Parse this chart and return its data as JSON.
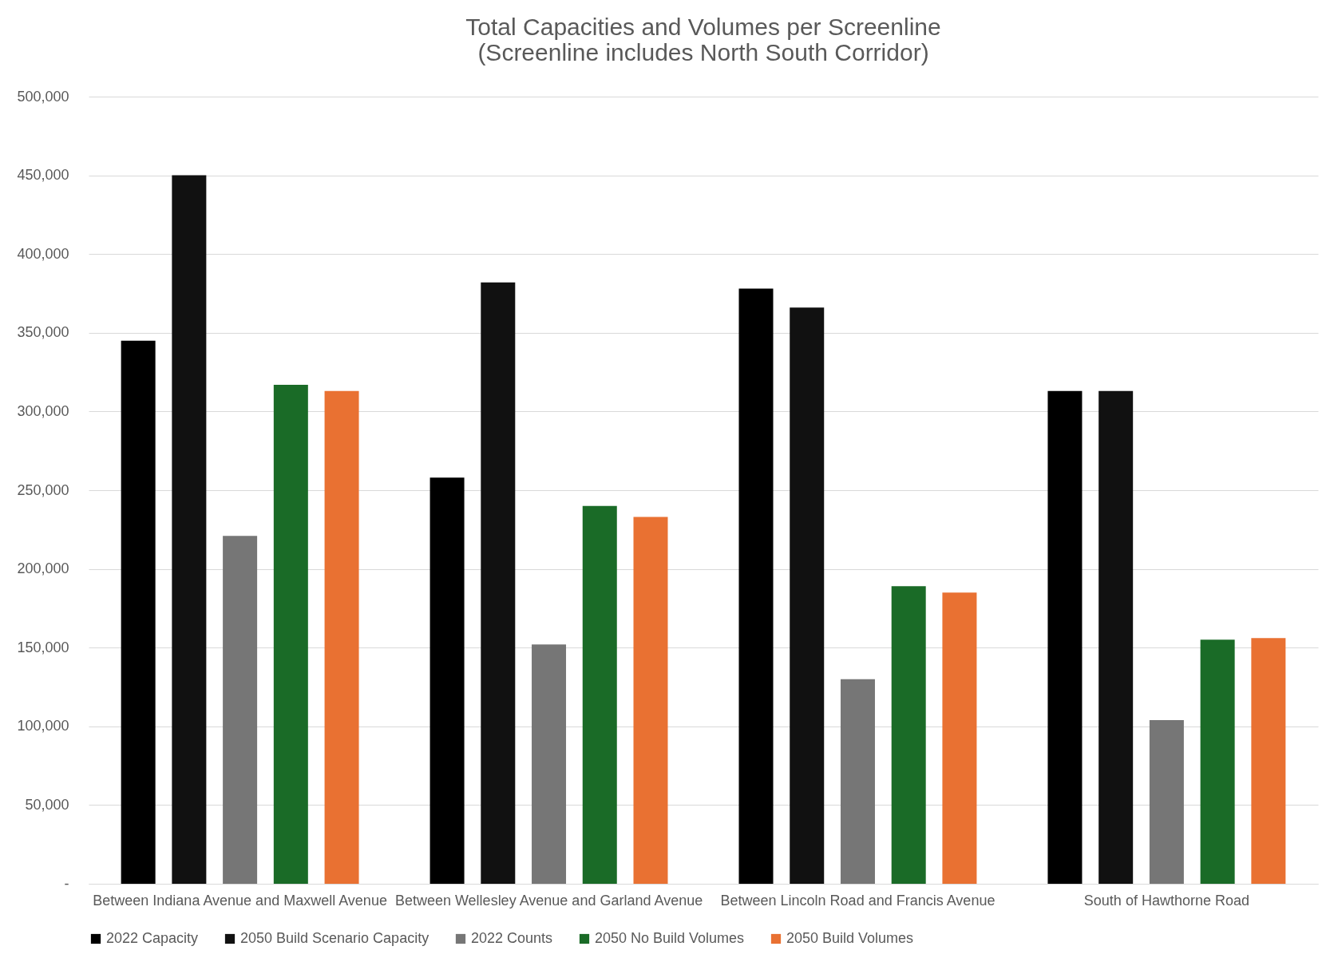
{
  "chart_data": {
    "type": "bar",
    "title": "Total Capacities and Volumes per Screenline\n(Screenline includes North South Corridor)",
    "categories": [
      "Between Indiana Avenue and Maxwell Avenue",
      "Between Wellesley Avenue and Garland Avenue",
      "Between Lincoln Road and Francis Avenue",
      "South of Hawthorne Road"
    ],
    "series": [
      {
        "name": "2022 Capacity",
        "color": "#000000",
        "values": [
          345000,
          258000,
          378000,
          313000
        ]
      },
      {
        "name": "2050 Build Scenario Capacity",
        "color": "#111111",
        "values": [
          450000,
          382000,
          366000,
          313000
        ]
      },
      {
        "name": "2022 Counts",
        "color": "#767676",
        "values": [
          221000,
          152000,
          130000,
          104000
        ]
      },
      {
        "name": "2050 No Build Volumes",
        "color": "#1a6b27",
        "values": [
          317000,
          240000,
          189000,
          155000
        ]
      },
      {
        "name": "2050 Build Volumes",
        "color": "#e97132",
        "values": [
          313000,
          233000,
          185000,
          156000
        ]
      }
    ],
    "ylim": [
      0,
      500000
    ],
    "yticks": [
      {
        "value": 0,
        "label": "-"
      },
      {
        "value": 50000,
        "label": "50,000"
      },
      {
        "value": 100000,
        "label": "100,000"
      },
      {
        "value": 150000,
        "label": "150,000"
      },
      {
        "value": 200000,
        "label": "200,000"
      },
      {
        "value": 250000,
        "label": "250,000"
      },
      {
        "value": 300000,
        "label": "300,000"
      },
      {
        "value": 350000,
        "label": "350,000"
      },
      {
        "value": 400000,
        "label": "400,000"
      },
      {
        "value": 450000,
        "label": "450,000"
      },
      {
        "value": 500000,
        "label": "500,000"
      }
    ],
    "grid": "y",
    "legend": "bottom"
  }
}
